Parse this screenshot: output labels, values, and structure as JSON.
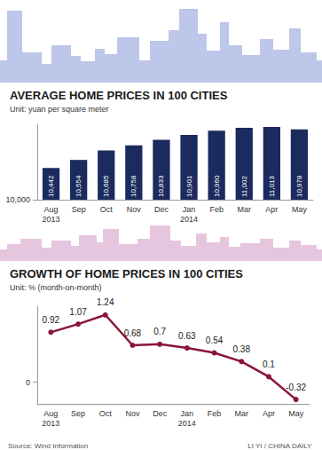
{
  "chart_data": [
    {
      "type": "bar",
      "title": "AVERAGE HOME PRICES IN 100 CITIES",
      "subtitle": "Unit: yuan per square meter",
      "categories": [
        "Aug\n2013",
        "Sep",
        "Oct",
        "Nov",
        "Dec",
        "Jan\n2014",
        "Feb",
        "Mar",
        "Apr",
        "May"
      ],
      "values": [
        10442,
        10554,
        10685,
        10758,
        10833,
        10901,
        10960,
        11002,
        11013,
        10978
      ],
      "value_labels": [
        "10,442",
        "10,554",
        "10,685",
        "10,758",
        "10,833",
        "10,901",
        "10,960",
        "11,002",
        "11,013",
        "10,978"
      ],
      "color": "#1c2b5e",
      "ylim": [
        10000,
        11050
      ],
      "yticks": [
        {
          "value": 10000,
          "label": "10,000"
        }
      ],
      "data_labels": true,
      "grid": false
    },
    {
      "type": "line",
      "title": "GROWTH OF HOME PRICES IN 100 CITIES",
      "subtitle": "Unit: % (month-on-month)",
      "categories": [
        "Aug\n2013",
        "Sep",
        "Oct",
        "Nov",
        "Dec",
        "Jan\n2014",
        "Feb",
        "Mar",
        "Apr",
        "May"
      ],
      "values": [
        0.92,
        1.07,
        1.24,
        0.68,
        0.7,
        0.63,
        0.54,
        0.38,
        0.1,
        -0.32
      ],
      "color": "#8a1538",
      "marker": "circle",
      "ylim": [
        -0.4,
        1.4
      ],
      "yticks": [
        0
      ],
      "data_labels": true,
      "grid": false
    }
  ],
  "source": "Source: Wind Information",
  "credit": "LI YI / CHINA DAILY"
}
